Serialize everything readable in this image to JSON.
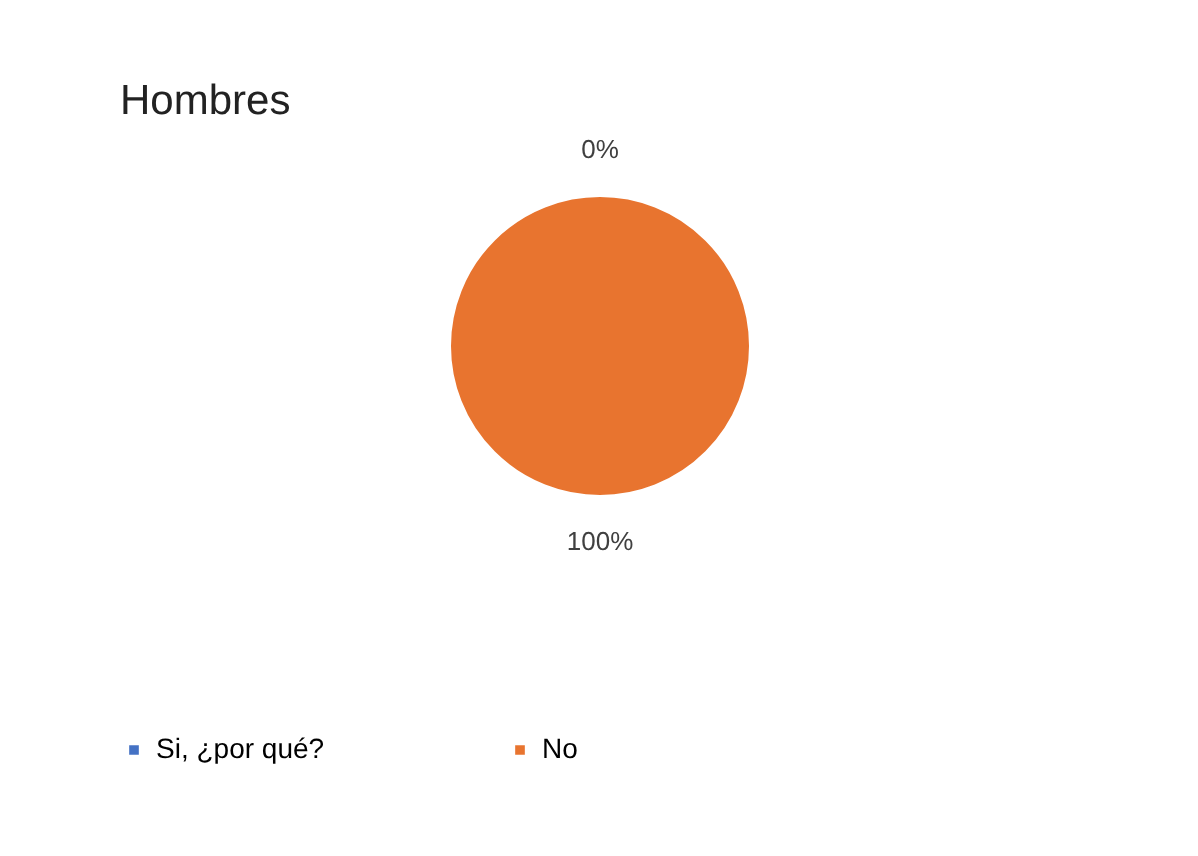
{
  "chart_data": {
    "type": "pie",
    "title": "Hombres",
    "categories": [
      "Si, ¿por qué?",
      "No"
    ],
    "values": [
      0,
      100
    ],
    "colors": [
      "#4472c4",
      "#e8742f"
    ],
    "value_labels": [
      "0%",
      "100%"
    ],
    "legend": "bottom"
  }
}
